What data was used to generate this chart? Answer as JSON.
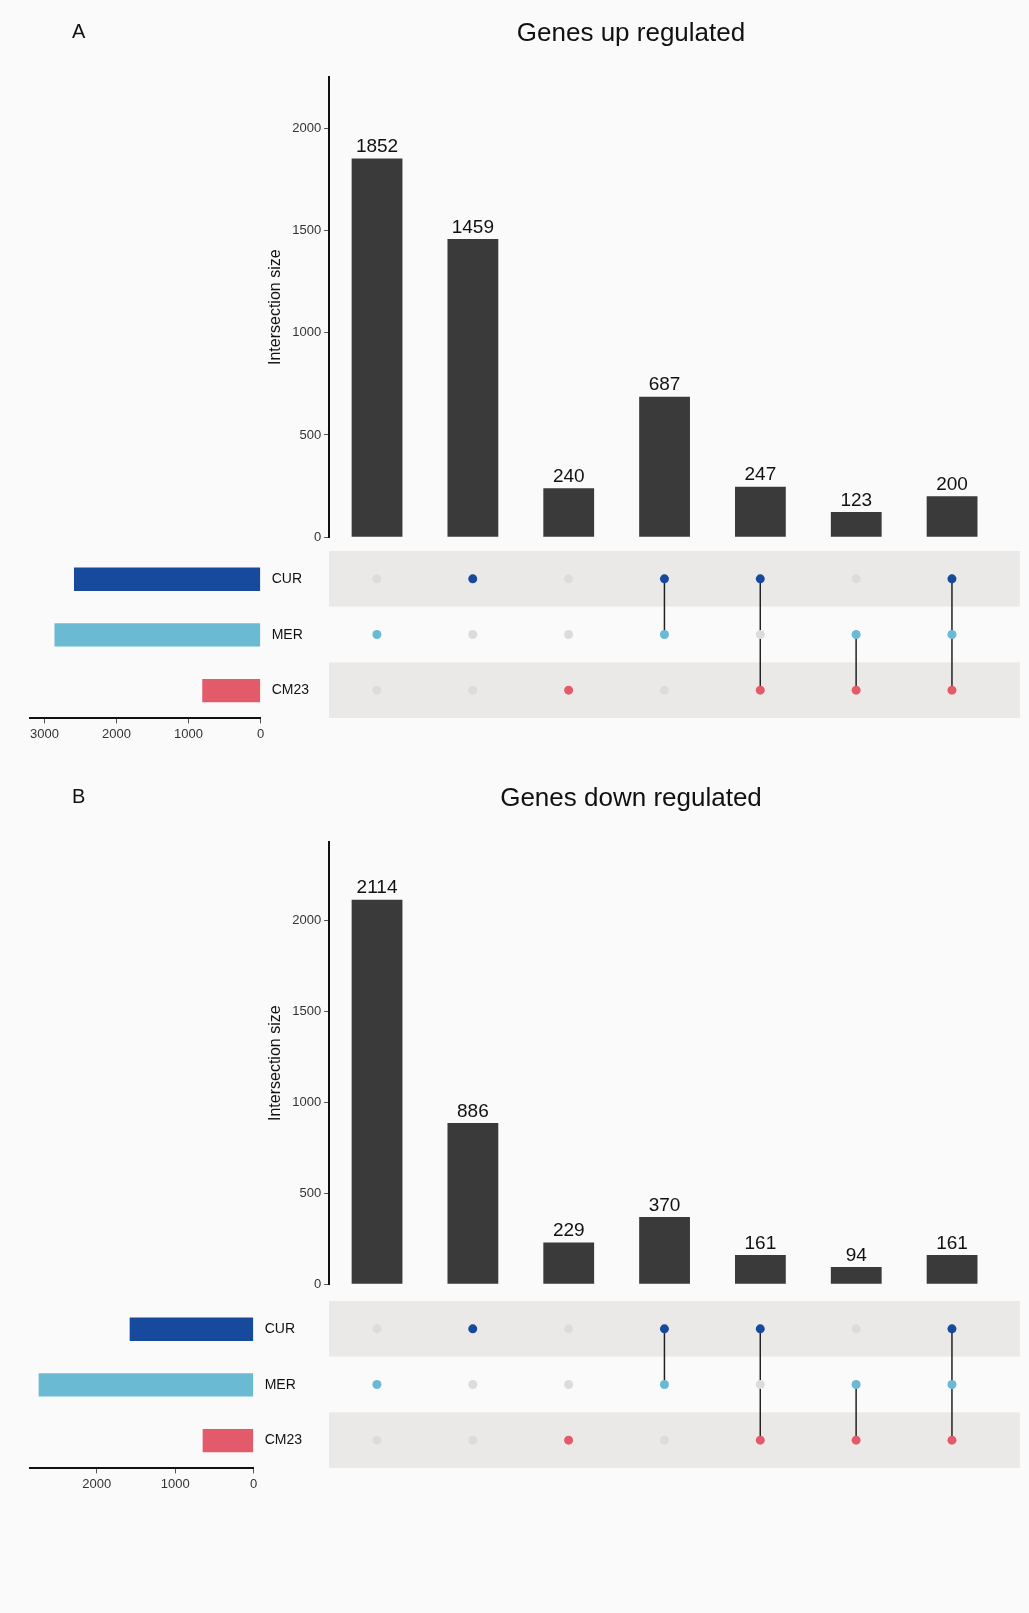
{
  "chart_data": [
    {
      "type": "bar",
      "title": "Genes up regulated",
      "ylabel": "Intersection size",
      "annotations": [
        "A"
      ],
      "categories": [
        null,
        null,
        null,
        null,
        null,
        null,
        null
      ],
      "values": [
        1852,
        1459,
        240,
        687,
        247,
        123,
        200
      ],
      "color": "#3a3a3a",
      "ylim": [
        0,
        2250
      ],
      "yticks": [
        0,
        500,
        1000,
        1500,
        2000
      ],
      "data_labels": true,
      "grid": false,
      "tick_labels": "y"
    },
    {
      "type": "bar",
      "orientation": "horizontal",
      "categories": [
        "CUR",
        "MER",
        "CM23"
      ],
      "values": [
        2590,
        2860,
        810
      ],
      "colors": [
        "#174a9c",
        "#6bbad3",
        "#e35b6b"
      ],
      "xlim": [
        3200,
        0
      ],
      "xticks": [
        3000,
        2000,
        1000,
        0
      ],
      "grid": false
    },
    {
      "type": "bar",
      "title": "Genes down regulated",
      "ylabel": "Intersection size",
      "annotations": [
        "B"
      ],
      "categories": [
        null,
        null,
        null,
        null,
        null,
        null,
        null
      ],
      "values": [
        2114,
        886,
        229,
        370,
        161,
        94,
        161
      ],
      "color": "#3a3a3a",
      "ylim": [
        0,
        2430
      ],
      "yticks": [
        0,
        500,
        1000,
        1500,
        2000
      ],
      "data_labels": true,
      "grid": false,
      "tick_labels": "y"
    },
    {
      "type": "bar",
      "orientation": "horizontal",
      "categories": [
        "CUR",
        "MER",
        "CM23"
      ],
      "values": [
        1580,
        2740,
        650
      ],
      "colors": [
        "#174a9c",
        "#6bbad3",
        "#e35b6b"
      ],
      "xlim": [
        2850,
        0
      ],
      "xticks": [
        2000,
        1000,
        0
      ],
      "grid": false
    }
  ]
}
